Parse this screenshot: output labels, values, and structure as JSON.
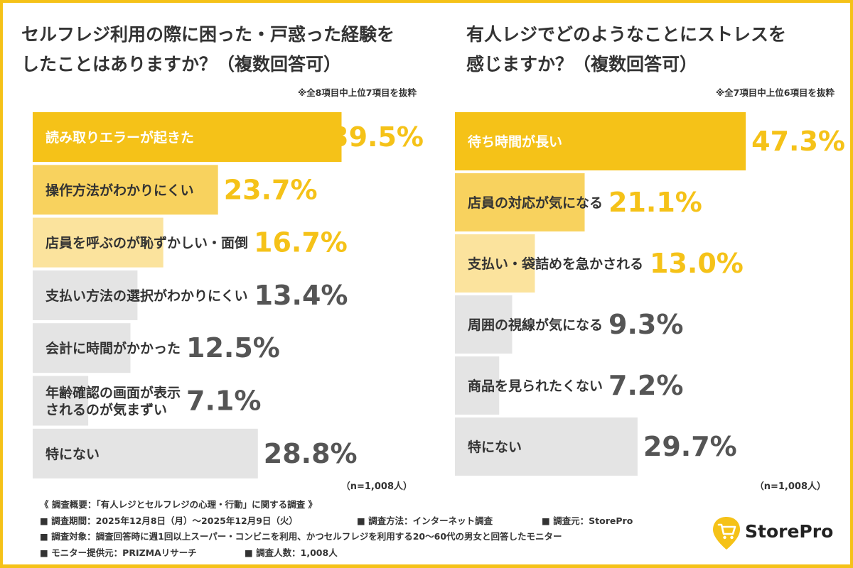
{
  "left": {
    "title_line1": "セルフレジ利用の際に困った・戸惑った経験を",
    "title_line2": "したことはありますか？（複数回答可）",
    "note": "※全8項目中上位7項目を抜粋",
    "n_label": "（n=1,008人）"
  },
  "right": {
    "title_line1": "有人レジでどのようなことにストレスを",
    "title_line2": "感じますか？（複数回答可）",
    "note": "※全7項目中上位6項目を抜粋",
    "n_label": "（n=1,008人）"
  },
  "chart_data": [
    {
      "type": "bar",
      "orientation": "horizontal",
      "title": "セルフレジ利用の際に困った・戸惑った経験をしたことはありますか？（複数回答可）",
      "unit": "%",
      "categories": [
        "読み取りエラーが起きた",
        "操作方法がわかりにくい",
        "店員を呼ぶのが恥ずかしい・面倒",
        "支払い方法の選択がわかりにくい",
        "会計に時間がかかった",
        "年齢確認の画面が表示\nされるのが気まずい",
        "特にない"
      ],
      "values": [
        39.5,
        23.7,
        16.7,
        13.4,
        12.5,
        7.1,
        28.8
      ],
      "labels": [
        "39.5%",
        "23.7%",
        "16.7%",
        "13.4%",
        "12.5%",
        "7.1%",
        "28.8%"
      ],
      "colors": [
        "#f5c218",
        "#f8d25e",
        "#fbe39d",
        "#e4e4e4",
        "#e4e4e4",
        "#e4e4e4",
        "#e4e4e4"
      ],
      "label_colors": [
        "#f5c218",
        "#f5c218",
        "#f5c218",
        "#555555",
        "#555555",
        "#555555",
        "#555555"
      ]
    },
    {
      "type": "bar",
      "orientation": "horizontal",
      "title": "有人レジでどのようなことにストレスを感じますか？（複数回答可）",
      "unit": "%",
      "categories": [
        "待ち時間が長い",
        "店員の対応が気になる",
        "支払い・袋詰めを急かされる",
        "周囲の視線が気になる",
        "商品を見られたくない",
        "特にない"
      ],
      "values": [
        47.3,
        21.1,
        13.0,
        9.3,
        7.2,
        29.7
      ],
      "labels": [
        "47.3%",
        "21.1%",
        "13.0%",
        "9.3%",
        "7.2%",
        "29.7%"
      ],
      "colors": [
        "#f5c218",
        "#f8d25e",
        "#fbe39d",
        "#e4e4e4",
        "#e4e4e4",
        "#e4e4e4"
      ],
      "label_colors": [
        "#f5c218",
        "#f5c218",
        "#f5c218",
        "#555555",
        "#555555",
        "#555555"
      ]
    }
  ],
  "footer": {
    "heading": "《 調査概要：「有人レジとセルフレジの心理・行動」に関する調査 》",
    "period": "■ 調査期間：2025年12月8日（月）〜2025年12月9日（火）",
    "method": "■ 調査方法：インターネット調査",
    "source": "■ 調査元：StorePro",
    "target": "■ 調査対象：調査回答時に週1回以上スーパー・コンビニを利用、かつセルフレジを利用する20〜60代の男女と回答したモニター",
    "provider": "■ モニター提供元：PRIZMAリサーチ",
    "count": "■ 調査人数：1,008人"
  },
  "logo": {
    "text": "StorePro",
    "icon": "shopping-cart-pin-icon"
  }
}
